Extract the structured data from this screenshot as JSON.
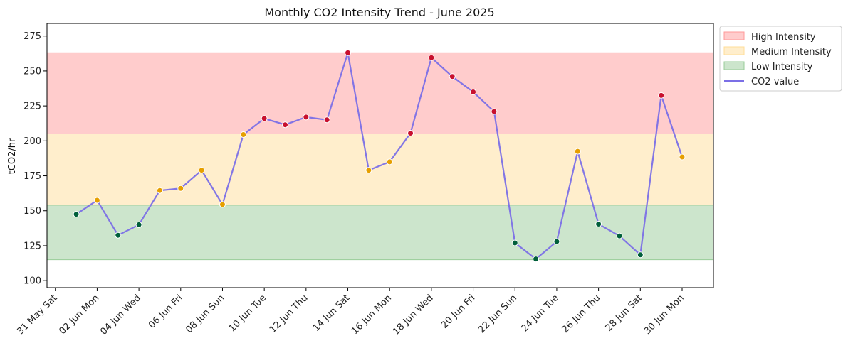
{
  "chart_data": {
    "type": "line",
    "title": "Monthly CO2 Intensity Trend - June 2025",
    "xlabel": "",
    "ylabel": "tCO2/hr",
    "ylim": [
      95,
      284
    ],
    "yticks": [
      100,
      125,
      150,
      175,
      200,
      225,
      250,
      275
    ],
    "x_tick_labels": [
      "31 May Sat",
      "02 Jun Mon",
      "04 Jun Wed",
      "06 Jun Fri",
      "08 Jun Sun",
      "10 Jun Tue",
      "12 Jun Thu",
      "14 Jun Sat",
      "16 Jun Mon",
      "18 Jun Wed",
      "20 Jun Fri",
      "22 Jun Sun",
      "24 Jun Tue",
      "26 Jun Thu",
      "28 Jun Sat",
      "30 Jun Mon"
    ],
    "x_tick_days": [
      0,
      2,
      4,
      6,
      8,
      10,
      12,
      14,
      16,
      18,
      20,
      22,
      24,
      26,
      28,
      30
    ],
    "xlim": [
      -0.4,
      31.5
    ],
    "grid": false,
    "legend_position": "outside-top-right",
    "bands": [
      {
        "name": "High Intensity",
        "from": 205,
        "to": 263,
        "color": "#ff9999"
      },
      {
        "name": "Medium Intensity",
        "from": 154,
        "to": 205,
        "color": "#ffdd99"
      },
      {
        "name": "Low Intensity",
        "from": 115,
        "to": 154,
        "color": "#99cc99"
      }
    ],
    "series": [
      {
        "name": "CO2 value",
        "color": "#7b6fe6",
        "dates": [
          "01 Jun",
          "02 Jun",
          "03 Jun",
          "04 Jun",
          "05 Jun",
          "06 Jun",
          "07 Jun",
          "08 Jun",
          "09 Jun",
          "10 Jun",
          "11 Jun",
          "12 Jun",
          "13 Jun",
          "14 Jun",
          "15 Jun",
          "16 Jun",
          "17 Jun",
          "18 Jun",
          "19 Jun",
          "20 Jun",
          "21 Jun",
          "22 Jun",
          "23 Jun",
          "24 Jun",
          "25 Jun",
          "26 Jun",
          "27 Jun",
          "28 Jun",
          "29 Jun",
          "30 Jun"
        ],
        "x": [
          1,
          2,
          3,
          4,
          5,
          6,
          7,
          8,
          9,
          10,
          11,
          12,
          13,
          14,
          15,
          16,
          17,
          18,
          19,
          20,
          21,
          22,
          23,
          24,
          25,
          26,
          27,
          28,
          29,
          30
        ],
        "values": [
          147.5,
          157.5,
          132.5,
          140,
          164.5,
          166,
          179,
          154.5,
          204.5,
          216,
          211.5,
          217,
          215,
          263,
          179,
          185,
          205.5,
          259.5,
          246,
          235,
          221,
          127,
          115.5,
          128,
          192.5,
          140.5,
          132,
          118.5,
          232.5,
          188.5
        ]
      }
    ],
    "marker_colors": {
      "high": "#c8102e",
      "medium": "#e69f00",
      "low": "#005f3a"
    },
    "legend": [
      "High Intensity",
      "Medium Intensity",
      "Low Intensity",
      "CO2 value"
    ]
  }
}
